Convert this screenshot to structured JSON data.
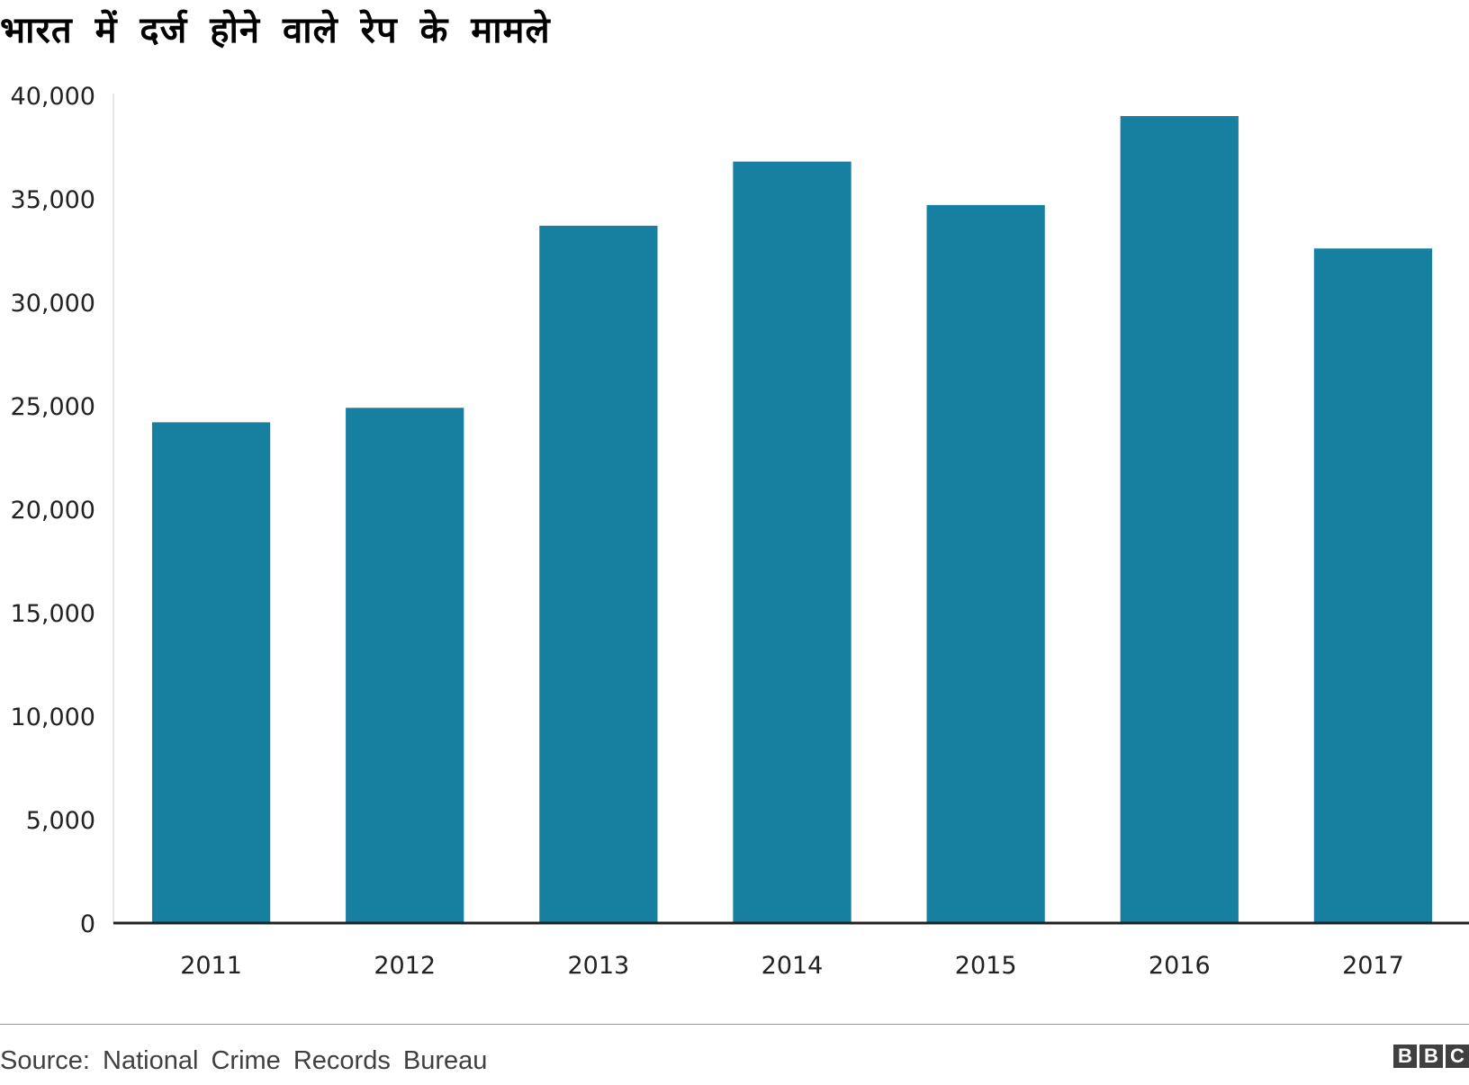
{
  "chart_data": {
    "type": "bar",
    "title": "भारत में दर्ज होने वाले रेप के मामले",
    "categories": [
      "2011",
      "2012",
      "2013",
      "2014",
      "2015",
      "2016",
      "2017"
    ],
    "values": [
      24200,
      24900,
      33700,
      36800,
      34700,
      39000,
      32600
    ],
    "ylim": [
      0,
      40000
    ],
    "yticks": [
      "0",
      "5,000",
      "10,000",
      "15,000",
      "20,000",
      "25,000",
      "30,000",
      "35,000",
      "40,000"
    ],
    "xlabel": "",
    "ylabel": "",
    "grid": false,
    "bar_color": "#1780a1"
  },
  "source": {
    "label": "Source:",
    "text": "National Crime Records Bureau"
  },
  "logo": {
    "letters": [
      "B",
      "B",
      "C"
    ]
  }
}
